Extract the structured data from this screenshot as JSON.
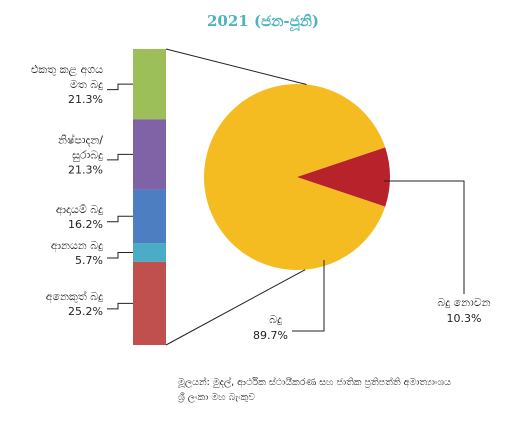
{
  "chart_data": {
    "type": "pie",
    "title": "2021 (ජන-ජූනි)",
    "pie": {
      "slices": [
        {
          "name": "බදු",
          "value": 89.7,
          "label": "89.7%",
          "color": "#f5bc22"
        },
        {
          "name": "බදු නොවන",
          "value": 10.3,
          "label": "10.3%",
          "color": "#b8222b"
        }
      ]
    },
    "breakdown": {
      "of": "බදු",
      "segments": [
        {
          "name_lines": [
            "එකතු කළ අගය",
            "මත බදු"
          ],
          "value": 21.3,
          "label": "21.3%",
          "color": "#9dbf59"
        },
        {
          "name_lines": [
            "නිෂ්පාදන/",
            "සුරාබදු"
          ],
          "value": 21.3,
          "label": "21.3%",
          "color": "#8063a6"
        },
        {
          "name_lines": [
            "ආදායම් බදු"
          ],
          "value": 16.2,
          "label": "16.2%",
          "color": "#4e7ec2"
        },
        {
          "name_lines": [
            "ආනයන බදු"
          ],
          "value": 5.7,
          "label": "5.7%",
          "color": "#4bacc6"
        },
        {
          "name_lines": [
            "අනෙකුත් බදු"
          ],
          "value": 25.2,
          "label": "25.2%",
          "color": "#c0504d"
        }
      ]
    },
    "source_lines": [
      "මූලයන්: මුදල්, ආර්ථික ස්ථායීකරණ සහ ජාතික ප්‍රතිපත්ති අමාත්‍යාංශය",
      "ශ්‍රී ලංකා මහ බැංකුව"
    ]
  }
}
